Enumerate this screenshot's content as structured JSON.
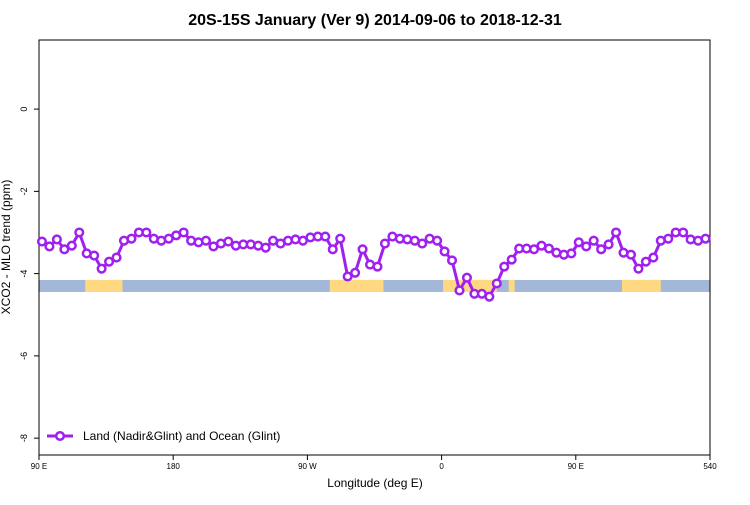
{
  "chart_data": {
    "type": "line",
    "title": "20S-15S January (Ver 9)   2014-09-06 to 2018-12-31",
    "x_label": "Longitude (deg E)",
    "y_label": "XCO2 - MLO trend (ppm)",
    "x": [
      92,
      97,
      102,
      107,
      112,
      117,
      122,
      127,
      132,
      137,
      142,
      147,
      152,
      157,
      162,
      167,
      172,
      177,
      182,
      187,
      192,
      197,
      202,
      207,
      212,
      217,
      222,
      227,
      232,
      237,
      242,
      247,
      252,
      257,
      262,
      267,
      272,
      277,
      282,
      287,
      292,
      297,
      302,
      307,
      312,
      317,
      322,
      327,
      332,
      337,
      342,
      347,
      352,
      357,
      362,
      367,
      372,
      377,
      382,
      387,
      392,
      397,
      402,
      407,
      412,
      417,
      422,
      427,
      432,
      437,
      442,
      447,
      452,
      457,
      462,
      467,
      472,
      477,
      482,
      487,
      492,
      497,
      502,
      507,
      512,
      517,
      522,
      527,
      532,
      537
    ],
    "series": [
      {
        "name": "Land (Nadir&Glint) and Ocean (Glint)",
        "color": "#a020f0",
        "values": [
          -3.22,
          -3.34,
          -3.17,
          -3.41,
          -3.32,
          -3.0,
          -3.51,
          -3.56,
          -3.88,
          -3.71,
          -3.61,
          -3.2,
          -3.15,
          -3.0,
          -3.0,
          -3.15,
          -3.2,
          -3.15,
          -3.07,
          -3.0,
          -3.2,
          -3.24,
          -3.2,
          -3.34,
          -3.27,
          -3.22,
          -3.32,
          -3.29,
          -3.29,
          -3.32,
          -3.37,
          -3.2,
          -3.27,
          -3.2,
          -3.17,
          -3.2,
          -3.12,
          -3.1,
          -3.1,
          -3.41,
          -3.15,
          -4.07,
          -3.98,
          -3.41,
          -3.78,
          -3.83,
          -3.27,
          -3.1,
          -3.15,
          -3.17,
          -3.2,
          -3.27,
          -3.15,
          -3.2,
          -3.46,
          -3.68,
          -4.41,
          -4.1,
          -4.49,
          -4.49,
          -4.56,
          -4.24,
          -3.83,
          -3.66,
          -3.39,
          -3.39,
          -3.41,
          -3.32,
          -3.39,
          -3.49,
          -3.54,
          -3.51,
          -3.24,
          -3.34,
          -3.2,
          -3.41,
          -3.29,
          -3.0,
          -3.49,
          -3.54,
          -3.88,
          -3.71,
          -3.61,
          -3.2,
          -3.15,
          -3.0,
          -3.0,
          -3.17,
          -3.2,
          -3.15
        ]
      }
    ],
    "xlim": [
      90,
      540
    ],
    "xticks": [
      {
        "value": 90,
        "label": "90 E"
      },
      180,
      {
        "value": 270,
        "label": "90 W"
      },
      {
        "value": 360,
        "label": "0"
      },
      {
        "value": 450,
        "label": "90 E"
      },
      540
    ],
    "ylim": [
      -8.41,
      1.68
    ],
    "yticks": [
      0,
      -2,
      -4,
      -6,
      -8
    ],
    "legend": "bottom-left",
    "surface_band": {
      "y": -4.3,
      "ocean_color": "#a3b7d9",
      "land_color": "#ffd982",
      "land_x": [
        [
          121,
          146
        ],
        [
          285,
          321
        ],
        [
          361,
          397
        ],
        [
          405,
          409
        ],
        [
          481,
          507
        ]
      ]
    }
  }
}
